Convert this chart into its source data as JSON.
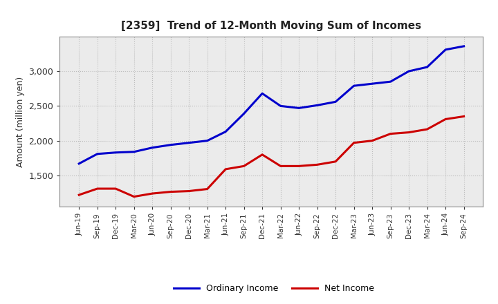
{
  "title": "[2359]  Trend of 12-Month Moving Sum of Incomes",
  "ylabel": "Amount (million yen)",
  "ylim": [
    1050,
    3500
  ],
  "yticks": [
    1500,
    2000,
    2500,
    3000
  ],
  "background_color": "#ffffff",
  "plot_bg_color": "#f0f0f0",
  "grid_color": "#bbbbbb",
  "ordinary_income_color": "#0000cc",
  "net_income_color": "#cc0000",
  "line_width": 2.2,
  "legend_labels": [
    "Ordinary Income",
    "Net Income"
  ],
  "x_labels": [
    "Jun-19",
    "Sep-19",
    "Dec-19",
    "Mar-20",
    "Jun-20",
    "Sep-20",
    "Dec-20",
    "Mar-21",
    "Jun-21",
    "Sep-21",
    "Dec-21",
    "Mar-22",
    "Jun-22",
    "Sep-22",
    "Dec-22",
    "Mar-23",
    "Jun-23",
    "Sep-23",
    "Dec-23",
    "Mar-24",
    "Jun-24",
    "Sep-24"
  ],
  "ordinary_income": [
    1670,
    1810,
    1830,
    1840,
    1900,
    1940,
    1970,
    2000,
    2130,
    2390,
    2680,
    2500,
    2470,
    2510,
    2560,
    2790,
    2820,
    2850,
    3000,
    3060,
    3310,
    3360
  ],
  "net_income": [
    1220,
    1310,
    1310,
    1195,
    1240,
    1265,
    1275,
    1305,
    1590,
    1635,
    1800,
    1635,
    1635,
    1655,
    1700,
    1970,
    2000,
    2100,
    2120,
    2165,
    2310,
    2350
  ]
}
